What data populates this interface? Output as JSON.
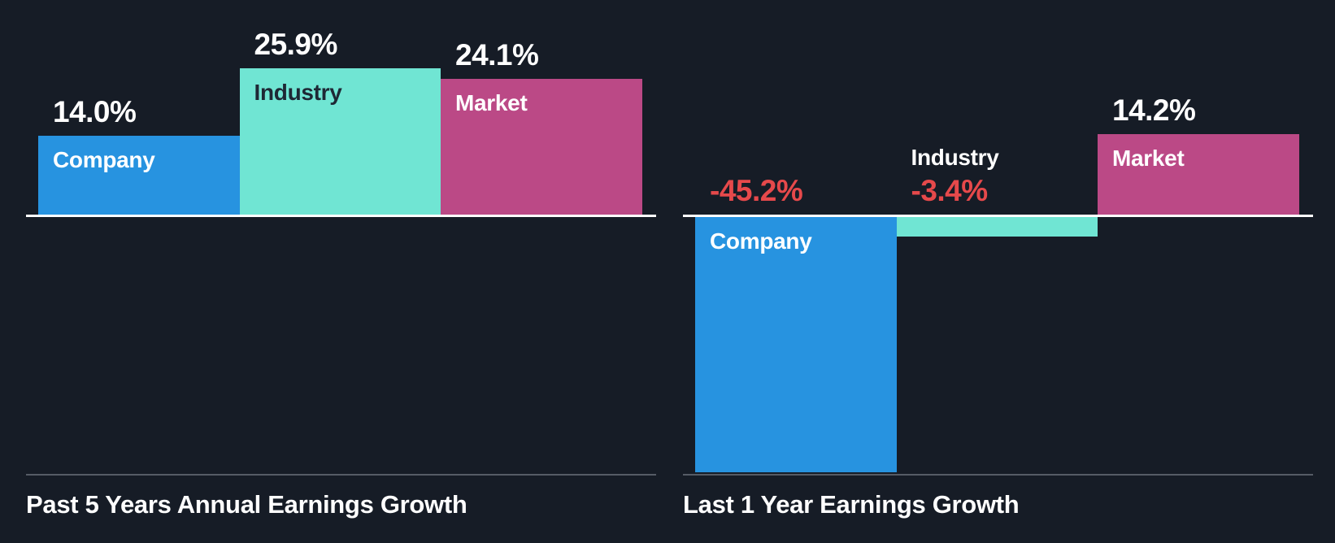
{
  "styles": {
    "background": "#161C26",
    "baseline_color": "#FFFFFF",
    "divider_color": "#565C66",
    "title_color": "#FFFFFF",
    "positive_value_color": "#FFFFFF",
    "negative_value_color": "#E6494B",
    "company_color": "#2793E0",
    "industry_color": "#70E5D3",
    "market_color": "#BB4986",
    "dark_label_color": "#1E2835"
  },
  "chart_data": [
    {
      "type": "bar",
      "title": "Past 5 Years Annual Earnings Growth",
      "categories": [
        "Company",
        "Industry",
        "Market"
      ],
      "values": [
        14.0,
        25.9,
        24.1
      ],
      "value_labels": [
        "14.0%",
        "25.9%",
        "24.1%"
      ],
      "bar_colors": [
        "#2793E0",
        "#70E5D3",
        "#BB4986"
      ],
      "category_label_colors": [
        "#FFFFFF",
        "#1E2835",
        "#FFFFFF"
      ],
      "value_label_colors": [
        "#FFFFFF",
        "#FFFFFF",
        "#FFFFFF"
      ],
      "category_label_placement": [
        "inside",
        "inside",
        "inside"
      ],
      "baseline": 0,
      "ylim": [
        -47,
        27
      ],
      "grid": false,
      "legend": false
    },
    {
      "type": "bar",
      "title": "Last 1 Year Earnings Growth",
      "categories": [
        "Company",
        "Industry",
        "Market"
      ],
      "values": [
        -45.2,
        -3.4,
        14.2
      ],
      "value_labels": [
        "-45.2%",
        "-3.4%",
        "14.2%"
      ],
      "bar_colors": [
        "#2793E0",
        "#70E5D3",
        "#BB4986"
      ],
      "category_label_colors": [
        "#FFFFFF",
        "#FFFFFF",
        "#FFFFFF"
      ],
      "value_label_colors": [
        "#E6494B",
        "#E6494B",
        "#FFFFFF"
      ],
      "category_label_placement": [
        "inside",
        "above",
        "inside"
      ],
      "baseline": 0,
      "ylim": [
        -47,
        27
      ],
      "grid": false,
      "legend": false
    }
  ]
}
